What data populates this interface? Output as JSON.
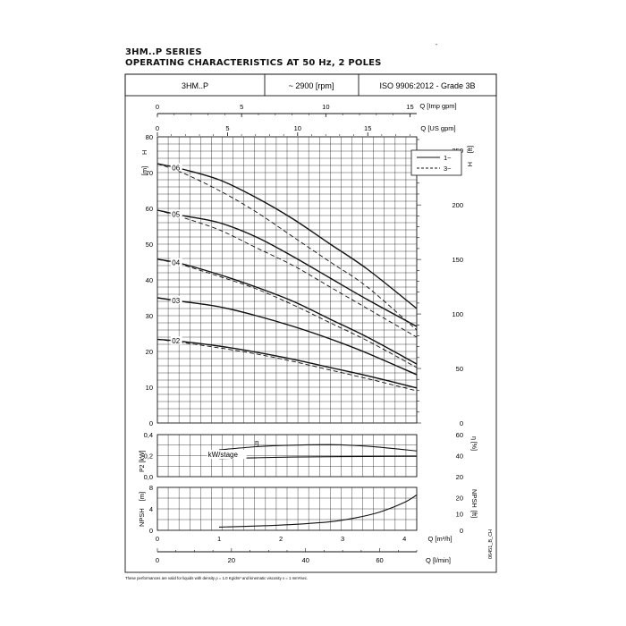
{
  "header": {
    "series": "3HM..P SERIES",
    "subtitle": "OPERATING CHARACTERISTICS AT 50 Hz, 2 POLES",
    "dash": "-"
  },
  "info_table": {
    "model": "3HM..P",
    "speed": "~ 2900 [rpm]",
    "standard": "ISO 9906:2012 - Grade 3B"
  },
  "footnote": "These performances are valid for liquids with density ρ = 1.0 Kg/dm³ and kinematic viscosity ν = 1 mm²/sec.",
  "doc_code": "06451_B_CH",
  "legend": {
    "single_phase": "1~",
    "three_phase": "3~"
  },
  "colors": {
    "line": "#111111",
    "grid": "#444444",
    "background": "#ffffff"
  },
  "chart_data": [
    {
      "type": "line",
      "panel": "head",
      "x_unit": "m3/h",
      "xlim": [
        0,
        4.2
      ],
      "ylim": [
        0,
        80
      ],
      "ylabel": "H",
      "ylabel_unit": "[m]",
      "ylabel_right": "H",
      "ylabel_right_unit": "[ft]",
      "y_ticks": [
        0,
        10,
        20,
        30,
        40,
        50,
        60,
        70,
        80
      ],
      "y_right_ticks": [
        0,
        50,
        100,
        150,
        200,
        250
      ],
      "top_axes": [
        {
          "label": "Q [Imp gpm]",
          "ticks": [
            0,
            5,
            10,
            15
          ]
        },
        {
          "label": "Q [US gpm]",
          "ticks": [
            0,
            5,
            10,
            15
          ]
        }
      ],
      "series": [
        {
          "name": "06",
          "phase": "1~",
          "x": [
            0,
            0.4,
            1.0,
            1.6,
            2.2,
            2.8,
            3.4,
            4.2
          ],
          "y": [
            72.5,
            71,
            68,
            63,
            57,
            50,
            43,
            32
          ]
        },
        {
          "name": "06",
          "phase": "3~",
          "x": [
            0,
            0.4,
            1.0,
            1.6,
            2.2,
            2.8,
            3.4,
            4.2
          ],
          "y": [
            72.5,
            70,
            65,
            59,
            52,
            45,
            38,
            26
          ]
        },
        {
          "name": "05",
          "phase": "1~",
          "x": [
            0,
            0.4,
            1.0,
            1.6,
            2.2,
            2.8,
            3.4,
            4.2
          ],
          "y": [
            59.5,
            58,
            56,
            52,
            46.5,
            40.5,
            34.5,
            27
          ]
        },
        {
          "name": "05",
          "phase": "3~",
          "x": [
            0,
            0.4,
            1.0,
            1.6,
            2.2,
            2.8,
            3.4,
            4.2
          ],
          "y": [
            59.5,
            57.5,
            54,
            49,
            44,
            38,
            32,
            24
          ]
        },
        {
          "name": "04",
          "phase": "1~",
          "x": [
            0,
            0.4,
            1.0,
            1.6,
            2.2,
            2.8,
            3.4,
            4.2
          ],
          "y": [
            45.8,
            44.5,
            41.5,
            38,
            34,
            29,
            24,
            16.5
          ]
        },
        {
          "name": "04",
          "phase": "3~",
          "x": [
            0,
            0.4,
            1.0,
            1.6,
            2.2,
            2.8,
            3.4,
            4.2
          ],
          "y": [
            45.8,
            44.2,
            41,
            37.5,
            33,
            28,
            23,
            15.5
          ]
        },
        {
          "name": "03",
          "phase": "1~",
          "x": [
            0,
            0.4,
            1.0,
            1.6,
            2.2,
            2.8,
            3.4,
            4.2
          ],
          "y": [
            35,
            34,
            32.5,
            30,
            27,
            23.5,
            19.5,
            13.5
          ]
        },
        {
          "name": "03",
          "phase": "3~",
          "x": [
            0,
            0.4,
            1.0,
            1.6,
            2.2,
            2.8,
            3.4,
            4.2
          ],
          "y": [
            35,
            34,
            32.5,
            30,
            27,
            23.5,
            19.5,
            13.5
          ]
        },
        {
          "name": "02",
          "phase": "1~",
          "x": [
            0,
            0.4,
            1.0,
            1.6,
            2.2,
            2.8,
            3.4,
            4.2
          ],
          "y": [
            23.4,
            22.8,
            21.5,
            19.8,
            17.8,
            15.5,
            13.2,
            9.8
          ]
        },
        {
          "name": "02",
          "phase": "3~",
          "x": [
            0,
            0.4,
            1.0,
            1.6,
            2.2,
            2.8,
            3.4,
            4.2
          ],
          "y": [
            23.4,
            22.5,
            21,
            19.3,
            17.2,
            14.8,
            12.4,
            9
          ]
        }
      ]
    },
    {
      "type": "line",
      "panel": "power_efficiency",
      "xlim": [
        0,
        4.2
      ],
      "ylim": [
        0,
        0.4
      ],
      "ylabel": "P2 [kW]",
      "ylabel_right": "η [%]",
      "y_ticks": [
        "0,0",
        "0,2",
        "0,4"
      ],
      "y_right_ticks": [
        20,
        40,
        60
      ],
      "y_right_lim": [
        20,
        60
      ],
      "series": [
        {
          "name": "kW/stage",
          "x": [
            1.0,
            1.6,
            2.2,
            2.8,
            3.4,
            4.2
          ],
          "y": [
            0.172,
            0.18,
            0.186,
            0.19,
            0.192,
            0.194
          ]
        },
        {
          "name": "η",
          "x": [
            1.0,
            1.6,
            2.2,
            2.8,
            3.4,
            4.2
          ],
          "y_right": [
            45.5,
            48.5,
            50,
            50.5,
            49,
            44.5
          ]
        }
      ]
    },
    {
      "type": "line",
      "panel": "npsh",
      "xlabel": "Q [m³/h]",
      "xlabel_secondary": "Q [l/min]",
      "xlim": [
        0,
        4.2
      ],
      "x_ticks": [
        0,
        1,
        2,
        3,
        4
      ],
      "x_secondary_ticks": [
        0,
        20,
        40,
        60
      ],
      "ylim": [
        0,
        8
      ],
      "ylabel": "NPSH",
      "ylabel_unit": "[m]",
      "ylabel_right": "NPSH",
      "ylabel_right_unit": "[ft]",
      "y_ticks": [
        0,
        4,
        8
      ],
      "y_right_ticks": [
        0,
        10,
        20
      ],
      "series": [
        {
          "name": "NPSH",
          "x": [
            1.0,
            1.6,
            2.2,
            2.8,
            3.2,
            3.6,
            4.0,
            4.2
          ],
          "y": [
            0.6,
            0.8,
            1.1,
            1.6,
            2.3,
            3.4,
            5.2,
            6.6
          ]
        }
      ]
    }
  ]
}
